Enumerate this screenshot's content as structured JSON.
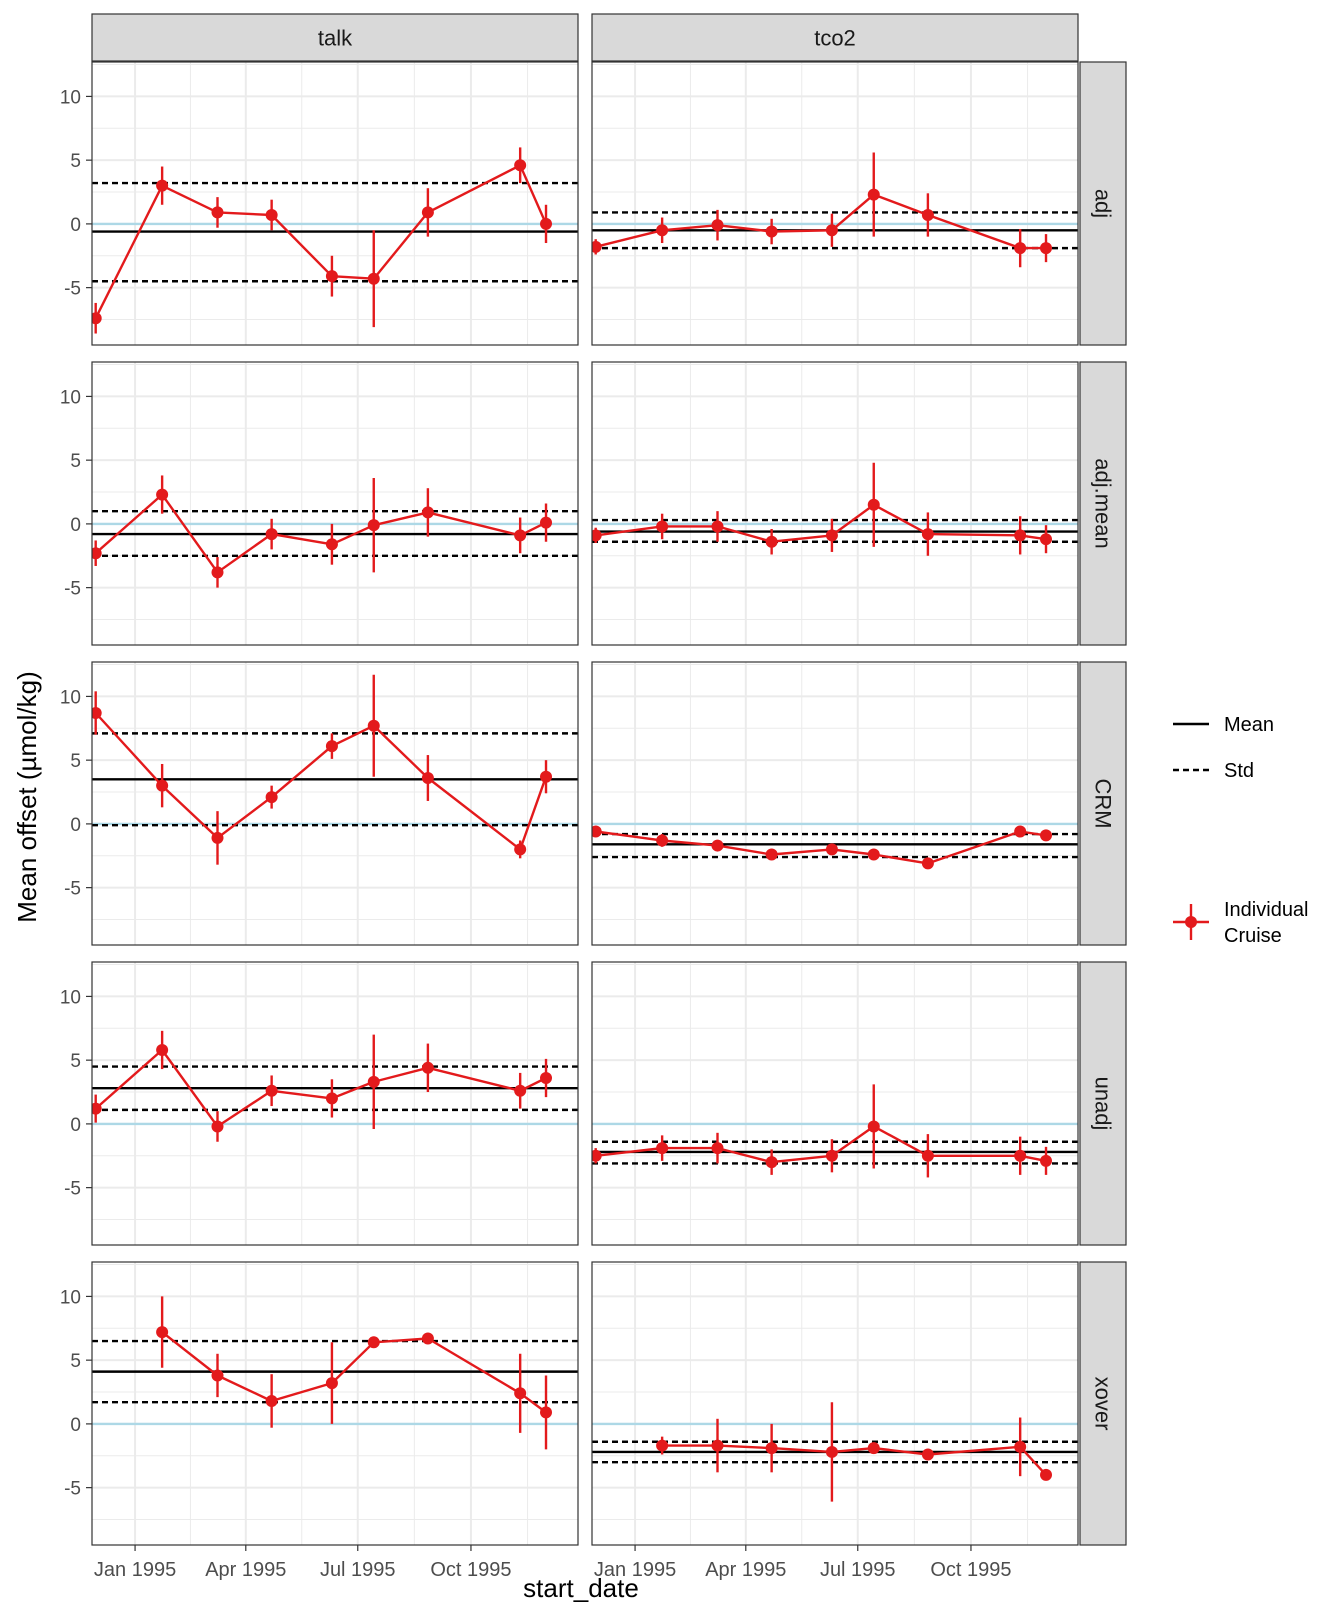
{
  "chart_data": {
    "type": "faceted-errorbar-line",
    "xlabel": "start_date",
    "ylabel": "Mean offset (µmol/kg)",
    "ylim": [
      -9.5,
      12.7
    ],
    "yticks": [
      -5,
      0,
      5,
      10
    ],
    "x_domain_days": [
      -35,
      360
    ],
    "x_ticks": [
      {
        "label": "Jan 1995",
        "day": 0
      },
      {
        "label": "Apr 1995",
        "day": 90
      },
      {
        "label": "Jul 1995",
        "day": 181
      },
      {
        "label": "Oct 1995",
        "day": 273
      }
    ],
    "columns": [
      "talk",
      "tco2"
    ],
    "rows": [
      "adj",
      "adj.mean",
      "CRM",
      "unadj",
      "xover"
    ],
    "legend": {
      "mean_label": "Mean",
      "std_label": "Std",
      "cruise_label_line1": "Individual",
      "cruise_label_line2": "Cruise"
    },
    "colors": {
      "series": "#e31a1c",
      "zero_line": "#add8e6",
      "strip_fill": "#d9d9d9",
      "grid": "#ebebeb",
      "border": "#333333"
    },
    "panels": [
      {
        "row": "adj",
        "col": "talk",
        "mean": -0.6,
        "std_upper": 3.2,
        "std_lower": -4.5,
        "points": [
          [
            -32,
            -7.4,
            1.2
          ],
          [
            22,
            3.0,
            1.5
          ],
          [
            67,
            0.9,
            1.2
          ],
          [
            111,
            0.7,
            1.2
          ],
          [
            160,
            -4.1,
            1.6
          ],
          [
            194,
            -4.3,
            3.8
          ],
          [
            238,
            0.9,
            1.9
          ],
          [
            313,
            4.6,
            1.4
          ],
          [
            334,
            0.0,
            1.5
          ]
        ]
      },
      {
        "row": "adj",
        "col": "tco2",
        "mean": -0.5,
        "std_upper": 0.9,
        "std_lower": -1.9,
        "points": [
          [
            -32,
            -1.8,
            0.6
          ],
          [
            22,
            -0.5,
            1.0
          ],
          [
            67,
            -0.1,
            1.2
          ],
          [
            111,
            -0.6,
            1.0
          ],
          [
            160,
            -0.5,
            1.3
          ],
          [
            194,
            2.3,
            3.3
          ],
          [
            238,
            0.7,
            1.7
          ],
          [
            313,
            -1.9,
            1.5
          ],
          [
            334,
            -1.9,
            1.1
          ]
        ]
      },
      {
        "row": "adj.mean",
        "col": "talk",
        "mean": -0.8,
        "std_upper": 1.0,
        "std_lower": -2.5,
        "points": [
          [
            -32,
            -2.3,
            1.0
          ],
          [
            22,
            2.3,
            1.5
          ],
          [
            67,
            -3.8,
            1.2
          ],
          [
            111,
            -0.8,
            1.2
          ],
          [
            160,
            -1.6,
            1.6
          ],
          [
            194,
            -0.1,
            3.7
          ],
          [
            238,
            0.9,
            1.9
          ],
          [
            313,
            -0.9,
            1.4
          ],
          [
            334,
            0.1,
            1.5
          ]
        ]
      },
      {
        "row": "adj.mean",
        "col": "tco2",
        "mean": -0.6,
        "std_upper": 0.3,
        "std_lower": -1.4,
        "points": [
          [
            -32,
            -0.9,
            0.6
          ],
          [
            22,
            -0.2,
            1.0
          ],
          [
            67,
            -0.2,
            1.2
          ],
          [
            111,
            -1.4,
            1.0
          ],
          [
            160,
            -0.9,
            1.3
          ],
          [
            194,
            1.5,
            3.3
          ],
          [
            238,
            -0.8,
            1.7
          ],
          [
            313,
            -0.9,
            1.5
          ],
          [
            334,
            -1.2,
            1.1
          ]
        ]
      },
      {
        "row": "CRM",
        "col": "talk",
        "mean": 3.5,
        "std_upper": 7.1,
        "std_lower": -0.1,
        "points": [
          [
            -32,
            8.7,
            1.7
          ],
          [
            22,
            3.0,
            1.7
          ],
          [
            67,
            -1.1,
            2.1
          ],
          [
            111,
            2.1,
            0.9
          ],
          [
            160,
            6.1,
            1.0
          ],
          [
            194,
            7.7,
            4.0
          ],
          [
            238,
            3.6,
            1.8
          ],
          [
            313,
            -2.0,
            0.7
          ],
          [
            334,
            3.7,
            1.3
          ]
        ]
      },
      {
        "row": "CRM",
        "col": "tco2",
        "mean": -1.6,
        "std_upper": -0.8,
        "std_lower": -2.6,
        "points": [
          [
            -32,
            -0.6,
            0.2
          ],
          [
            22,
            -1.3,
            0.5
          ],
          [
            67,
            -1.7,
            0.3
          ],
          [
            111,
            -2.4,
            0.2
          ],
          [
            160,
            -2.0,
            0.3
          ],
          [
            194,
            -2.4,
            0.4
          ],
          [
            238,
            -3.1,
            0.2
          ],
          [
            313,
            -0.6,
            0.2
          ],
          [
            334,
            -0.9,
            0.3
          ]
        ]
      },
      {
        "row": "unadj",
        "col": "talk",
        "mean": 2.8,
        "std_upper": 4.5,
        "std_lower": 1.1,
        "points": [
          [
            -32,
            1.2,
            1.1
          ],
          [
            22,
            5.8,
            1.5
          ],
          [
            67,
            -0.2,
            1.2
          ],
          [
            111,
            2.6,
            1.2
          ],
          [
            160,
            2.0,
            1.5
          ],
          [
            194,
            3.3,
            3.7
          ],
          [
            238,
            4.4,
            1.9
          ],
          [
            313,
            2.6,
            1.4
          ],
          [
            334,
            3.6,
            1.5
          ]
        ]
      },
      {
        "row": "unadj",
        "col": "tco2",
        "mean": -2.2,
        "std_upper": -1.4,
        "std_lower": -3.1,
        "points": [
          [
            -32,
            -2.5,
            0.6
          ],
          [
            22,
            -1.9,
            1.0
          ],
          [
            67,
            -1.9,
            1.2
          ],
          [
            111,
            -3.0,
            1.0
          ],
          [
            160,
            -2.5,
            1.3
          ],
          [
            194,
            -0.2,
            3.3
          ],
          [
            238,
            -2.5,
            1.7
          ],
          [
            313,
            -2.5,
            1.5
          ],
          [
            334,
            -2.9,
            1.1
          ]
        ]
      },
      {
        "row": "xover",
        "col": "talk",
        "mean": 4.1,
        "std_upper": 6.5,
        "std_lower": 1.7,
        "points": [
          [
            22,
            7.2,
            2.8
          ],
          [
            67,
            3.8,
            1.7
          ],
          [
            111,
            1.8,
            2.1
          ],
          [
            160,
            3.2,
            3.2
          ],
          [
            194,
            6.4,
            0.2
          ],
          [
            238,
            6.7,
            0.2
          ],
          [
            313,
            2.4,
            3.1
          ],
          [
            334,
            0.9,
            2.9
          ]
        ]
      },
      {
        "row": "xover",
        "col": "tco2",
        "mean": -2.2,
        "std_upper": -1.4,
        "std_lower": -3.0,
        "points": [
          [
            22,
            -1.7,
            0.7
          ],
          [
            67,
            -1.7,
            2.1
          ],
          [
            111,
            -1.9,
            1.9
          ],
          [
            160,
            -2.2,
            3.9
          ],
          [
            194,
            -1.9,
            0.3
          ],
          [
            238,
            -2.4,
            0.3
          ],
          [
            313,
            -1.8,
            2.3
          ],
          [
            334,
            -4.0,
            0.2
          ]
        ]
      }
    ]
  }
}
